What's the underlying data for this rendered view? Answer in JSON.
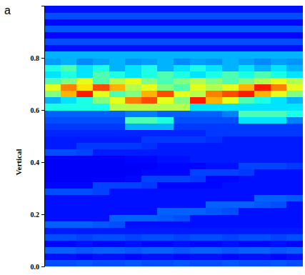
{
  "chart_data": {
    "type": "heatmap",
    "panel_label": "a",
    "ylabel": "Vertical",
    "ylim": [
      0,
      1
    ],
    "yticks": [
      {
        "value": 0,
        "label": "0.0"
      },
      {
        "value": 0.2,
        "label": "0.2"
      },
      {
        "value": 0.4,
        "label": "0.4"
      },
      {
        "value": 0.6,
        "label": "0.6"
      },
      {
        "value": 0.8,
        "label": "0.8"
      }
    ],
    "tick_labels": "y",
    "zlim": [
      0,
      1
    ],
    "cells": [
      [
        0.2,
        0.2,
        0.21,
        0.2,
        0.2,
        0.21,
        0.2,
        0.2,
        0.21,
        0.2,
        0.2,
        0.21,
        0.2,
        0.2,
        0.21,
        0.2
      ],
      [
        0.14,
        0.14,
        0.13,
        0.14,
        0.14,
        0.13,
        0.14,
        0.14,
        0.13,
        0.14,
        0.14,
        0.13,
        0.14,
        0.14,
        0.13,
        0.14
      ],
      [
        0.22,
        0.22,
        0.21,
        0.22,
        0.22,
        0.21,
        0.22,
        0.22,
        0.21,
        0.22,
        0.22,
        0.21,
        0.22,
        0.22,
        0.21,
        0.22
      ],
      [
        0.13,
        0.13,
        0.14,
        0.13,
        0.13,
        0.14,
        0.13,
        0.13,
        0.14,
        0.13,
        0.13,
        0.14,
        0.13,
        0.13,
        0.14,
        0.13
      ],
      [
        0.2,
        0.2,
        0.19,
        0.2,
        0.2,
        0.19,
        0.2,
        0.2,
        0.19,
        0.2,
        0.2,
        0.19,
        0.2,
        0.2,
        0.19,
        0.2
      ],
      [
        0.15,
        0.15,
        0.15,
        0.15,
        0.15,
        0.15,
        0.15,
        0.15,
        0.15,
        0.15,
        0.15,
        0.15,
        0.15,
        0.15,
        0.15,
        0.15
      ],
      [
        0.22,
        0.22,
        0.22,
        0.21,
        0.2,
        0.14,
        0.14,
        0.14,
        0.14,
        0.14,
        0.14,
        0.14,
        0.14,
        0.14,
        0.14,
        0.14
      ],
      [
        0.14,
        0.14,
        0.14,
        0.14,
        0.22,
        0.22,
        0.22,
        0.21,
        0.2,
        0.14,
        0.14,
        0.14,
        0.14,
        0.14,
        0.14,
        0.14
      ],
      [
        0.14,
        0.14,
        0.14,
        0.14,
        0.14,
        0.14,
        0.14,
        0.22,
        0.22,
        0.22,
        0.21,
        0.2,
        0.14,
        0.14,
        0.14,
        0.14
      ],
      [
        0.14,
        0.14,
        0.14,
        0.14,
        0.14,
        0.14,
        0.14,
        0.14,
        0.14,
        0.14,
        0.22,
        0.22,
        0.22,
        0.21,
        0.2,
        0.14
      ],
      [
        0.14,
        0.14,
        0.14,
        0.14,
        0.14,
        0.14,
        0.14,
        0.14,
        0.14,
        0.14,
        0.14,
        0.14,
        0.14,
        0.22,
        0.22,
        0.21
      ],
      [
        0.2,
        0.2,
        0.2,
        0.19,
        0.14,
        0.14,
        0.14,
        0.14,
        0.14,
        0.14,
        0.14,
        0.14,
        0.14,
        0.14,
        0.14,
        0.14
      ],
      [
        0.13,
        0.13,
        0.13,
        0.19,
        0.19,
        0.19,
        0.18,
        0.13,
        0.13,
        0.13,
        0.13,
        0.14,
        0.14,
        0.14,
        0.14,
        0.14
      ],
      [
        0.12,
        0.12,
        0.12,
        0.12,
        0.12,
        0.13,
        0.19,
        0.19,
        0.19,
        0.18,
        0.13,
        0.13,
        0.14,
        0.14,
        0.14,
        0.14
      ],
      [
        0.12,
        0.12,
        0.12,
        0.12,
        0.12,
        0.12,
        0.13,
        0.13,
        0.13,
        0.19,
        0.19,
        0.19,
        0.18,
        0.14,
        0.14,
        0.14
      ],
      [
        0.12,
        0.12,
        0.12,
        0.12,
        0.12,
        0.12,
        0.12,
        0.13,
        0.13,
        0.13,
        0.14,
        0.14,
        0.19,
        0.19,
        0.19,
        0.18
      ],
      [
        0.12,
        0.12,
        0.12,
        0.12,
        0.12,
        0.13,
        0.13,
        0.14,
        0.14,
        0.15,
        0.15,
        0.15,
        0.15,
        0.15,
        0.15,
        0.15
      ],
      [
        0.2,
        0.2,
        0.19,
        0.15,
        0.15,
        0.15,
        0.15,
        0.15,
        0.15,
        0.15,
        0.15,
        0.15,
        0.15,
        0.15,
        0.15,
        0.15
      ],
      [
        0.15,
        0.15,
        0.18,
        0.18,
        0.18,
        0.18,
        0.17,
        0.15,
        0.15,
        0.15,
        0.15,
        0.15,
        0.15,
        0.15,
        0.15,
        0.15
      ],
      [
        0.15,
        0.15,
        0.15,
        0.15,
        0.15,
        0.15,
        0.18,
        0.18,
        0.18,
        0.18,
        0.17,
        0.15,
        0.15,
        0.15,
        0.15,
        0.15
      ],
      [
        0.16,
        0.16,
        0.16,
        0.16,
        0.16,
        0.16,
        0.16,
        0.16,
        0.16,
        0.16,
        0.18,
        0.18,
        0.18,
        0.18,
        0.18,
        0.18
      ],
      [
        0.18,
        0.18,
        0.18,
        0.18,
        0.18,
        0.3,
        0.3,
        0.3,
        0.18,
        0.18,
        0.18,
        0.18,
        0.18,
        0.18,
        0.18,
        0.18
      ],
      [
        0.2,
        0.2,
        0.2,
        0.2,
        0.2,
        0.45,
        0.45,
        0.4,
        0.2,
        0.2,
        0.2,
        0.2,
        0.35,
        0.35,
        0.35,
        0.25
      ],
      [
        0.22,
        0.22,
        0.22,
        0.22,
        0.22,
        0.25,
        0.25,
        0.22,
        0.22,
        0.22,
        0.22,
        0.25,
        0.45,
        0.45,
        0.45,
        0.4
      ],
      [
        0.4,
        0.4,
        0.4,
        0.4,
        0.55,
        0.55,
        0.55,
        0.55,
        0.55,
        0.35,
        0.35,
        0.35,
        0.35,
        0.35,
        0.35,
        0.35
      ],
      [
        0.3,
        0.35,
        0.4,
        0.5,
        0.6,
        0.75,
        0.8,
        0.6,
        0.5,
        0.85,
        0.7,
        0.6,
        0.45,
        0.4,
        0.35,
        0.3
      ],
      [
        0.5,
        0.7,
        0.85,
        0.6,
        0.45,
        0.5,
        0.7,
        0.8,
        0.6,
        0.55,
        0.75,
        0.8,
        0.85,
        0.7,
        0.6,
        0.5
      ],
      [
        0.6,
        0.75,
        0.65,
        0.8,
        0.7,
        0.55,
        0.6,
        0.5,
        0.45,
        0.6,
        0.55,
        0.6,
        0.7,
        0.85,
        0.75,
        0.6
      ],
      [
        0.45,
        0.5,
        0.6,
        0.45,
        0.55,
        0.6,
        0.5,
        0.45,
        0.5,
        0.55,
        0.5,
        0.45,
        0.5,
        0.55,
        0.6,
        0.55
      ],
      [
        0.35,
        0.4,
        0.35,
        0.45,
        0.4,
        0.35,
        0.4,
        0.45,
        0.4,
        0.35,
        0.4,
        0.45,
        0.4,
        0.45,
        0.4,
        0.35
      ],
      [
        0.4,
        0.45,
        0.35,
        0.4,
        0.3,
        0.35,
        0.4,
        0.3,
        0.35,
        0.4,
        0.35,
        0.3,
        0.35,
        0.3,
        0.35,
        0.3
      ],
      [
        0.28,
        0.3,
        0.26,
        0.28,
        0.3,
        0.27,
        0.28,
        0.3,
        0.26,
        0.28,
        0.27,
        0.3,
        0.28,
        0.26,
        0.28,
        0.27
      ],
      [
        0.3,
        0.3,
        0.3,
        0.3,
        0.3,
        0.3,
        0.3,
        0.3,
        0.3,
        0.3,
        0.3,
        0.3,
        0.3,
        0.3,
        0.3,
        0.3
      ],
      [
        0.14,
        0.14,
        0.14,
        0.14,
        0.14,
        0.14,
        0.14,
        0.14,
        0.14,
        0.14,
        0.14,
        0.14,
        0.14,
        0.14,
        0.14,
        0.14
      ],
      [
        0.2,
        0.2,
        0.2,
        0.2,
        0.2,
        0.2,
        0.2,
        0.2,
        0.2,
        0.2,
        0.2,
        0.2,
        0.2,
        0.2,
        0.2,
        0.2
      ],
      [
        0.13,
        0.13,
        0.13,
        0.13,
        0.13,
        0.13,
        0.13,
        0.13,
        0.13,
        0.13,
        0.13,
        0.13,
        0.13,
        0.13,
        0.13,
        0.13
      ],
      [
        0.21,
        0.21,
        0.21,
        0.21,
        0.21,
        0.21,
        0.21,
        0.21,
        0.21,
        0.21,
        0.21,
        0.21,
        0.21,
        0.21,
        0.21,
        0.21
      ],
      [
        0.13,
        0.13,
        0.13,
        0.13,
        0.13,
        0.13,
        0.13,
        0.13,
        0.13,
        0.13,
        0.13,
        0.13,
        0.13,
        0.13,
        0.13,
        0.13
      ],
      [
        0.2,
        0.2,
        0.2,
        0.2,
        0.2,
        0.2,
        0.2,
        0.2,
        0.2,
        0.2,
        0.2,
        0.2,
        0.2,
        0.2,
        0.2,
        0.2
      ],
      [
        0.14,
        0.14,
        0.14,
        0.14,
        0.14,
        0.14,
        0.14,
        0.14,
        0.14,
        0.14,
        0.14,
        0.14,
        0.14,
        0.14,
        0.14,
        0.14
      ]
    ]
  }
}
